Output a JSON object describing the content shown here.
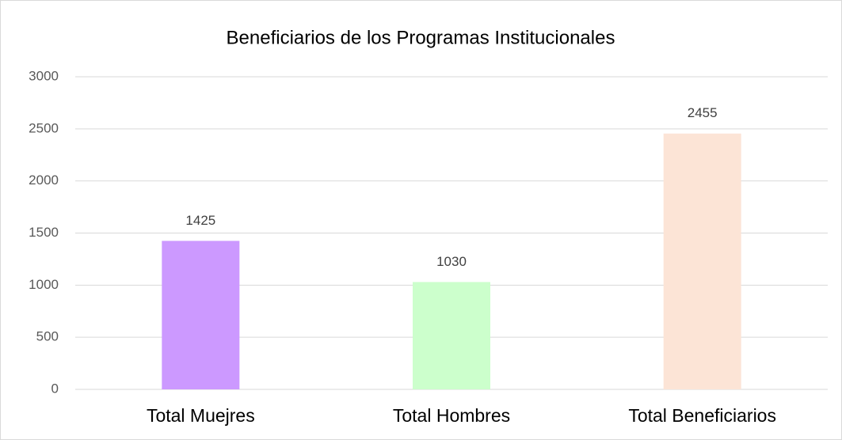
{
  "chart_data": {
    "type": "bar",
    "title": "Beneficiarios de los Programas Institucionales",
    "categories": [
      "Total Muejres",
      "Total Hombres",
      "Total Beneficiarios"
    ],
    "values": [
      1425,
      1030,
      2455
    ],
    "colors": [
      "#cc99ff",
      "#ccffcc",
      "#fce4d6"
    ],
    "ylim": [
      0,
      3000
    ],
    "yticks": [
      0,
      500,
      1000,
      1500,
      2000,
      2500,
      3000
    ],
    "grid": true
  }
}
